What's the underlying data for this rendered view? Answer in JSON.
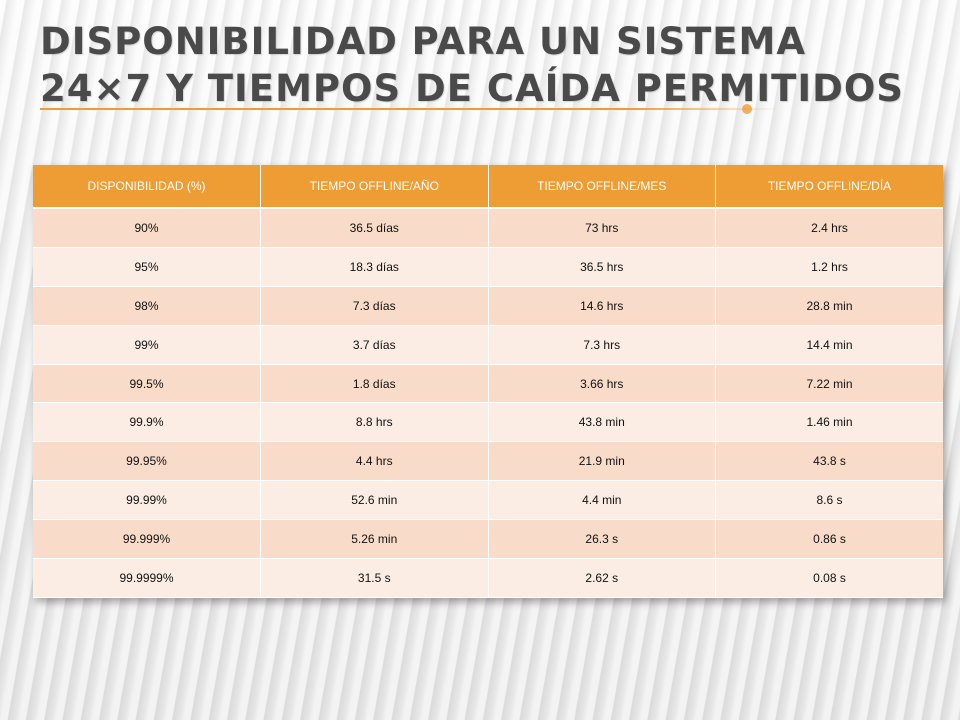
{
  "slide": {
    "title": "DISPONIBILIDAD PARA UN SISTEMA 24×7 Y TIEMPOS DE CAÍDA PERMITIDOS"
  },
  "colors": {
    "accent": "#ee9d35",
    "row_odd": "#f8dcc9",
    "row_even": "#fbede4",
    "title_text": "#4a4a4a"
  },
  "table": {
    "headers": [
      "DISPONIBILIDAD (%)",
      "TIEMPO OFFLINE/AÑO",
      "TIEMPO OFFLINE/MES",
      "TIEMPO OFFLINE/DÍA"
    ],
    "rows": [
      [
        "90%",
        "36.5 días",
        "73 hrs",
        "2.4 hrs"
      ],
      [
        "95%",
        "18.3 días",
        "36.5 hrs",
        "1.2 hrs"
      ],
      [
        "98%",
        "7.3 días",
        "14.6 hrs",
        "28.8 min"
      ],
      [
        "99%",
        "3.7 días",
        "7.3 hrs",
        "14.4 min"
      ],
      [
        "99.5%",
        "1.8 días",
        "3.66 hrs",
        "7.22 min"
      ],
      [
        "99.9%",
        "8.8 hrs",
        "43.8 min",
        "1.46 min"
      ],
      [
        "99.95%",
        "4.4 hrs",
        "21.9 min",
        "43.8 s"
      ],
      [
        "99.99%",
        "52.6 min",
        "4.4 min",
        "8.6 s"
      ],
      [
        "99.999%",
        "5.26 min",
        "26.3 s",
        "0.86 s"
      ],
      [
        "99.9999%",
        "31.5 s",
        "2.62 s",
        "0.08 s"
      ]
    ]
  }
}
